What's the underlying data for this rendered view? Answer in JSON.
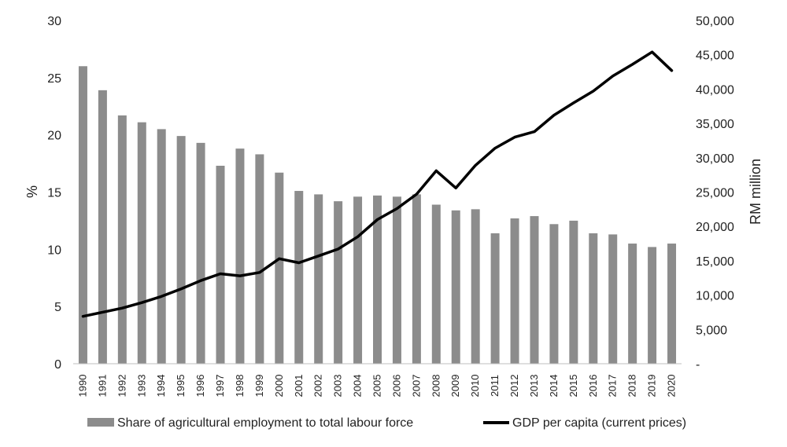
{
  "chart_data": {
    "type": "bar",
    "categories": [
      "1990",
      "1991",
      "1992",
      "1993",
      "1994",
      "1995",
      "1996",
      "1997",
      "1998",
      "1999",
      "2000",
      "2001",
      "2002",
      "2003",
      "2004",
      "2005",
      "2006",
      "2007",
      "2008",
      "2009",
      "2010",
      "2011",
      "2012",
      "2013",
      "2014",
      "2015",
      "2016",
      "2017",
      "2018",
      "2019",
      "2020"
    ],
    "series": [
      {
        "name": "Share of agricultural employment to total labour force",
        "type": "bar",
        "axis": "left",
        "color": "#8c8c8c",
        "values": [
          26.0,
          23.9,
          21.7,
          21.1,
          20.5,
          19.9,
          19.3,
          17.3,
          18.8,
          18.3,
          16.7,
          15.1,
          14.8,
          14.2,
          14.6,
          14.7,
          14.6,
          14.8,
          13.9,
          13.4,
          13.5,
          11.4,
          12.7,
          12.9,
          12.2,
          12.5,
          11.4,
          11.3,
          10.5,
          10.2,
          10.5
        ]
      },
      {
        "name": "GDP per capita (current prices)",
        "type": "line",
        "axis": "right",
        "color": "#000000",
        "values": [
          6900,
          7500,
          8100,
          8900,
          9800,
          10900,
          12100,
          13100,
          12800,
          13300,
          15300,
          14700,
          15700,
          16700,
          18500,
          21000,
          22600,
          24700,
          28100,
          25600,
          28900,
          31400,
          33000,
          33800,
          36200,
          38000,
          39700,
          41900,
          43600,
          45400,
          42700
        ]
      }
    ],
    "yaxis_left": {
      "label": "%",
      "min": 0,
      "max": 30,
      "ticks": [
        "0",
        "5",
        "10",
        "15",
        "20",
        "25",
        "30"
      ]
    },
    "yaxis_right": {
      "label": "RM million",
      "min": 0,
      "max": 50000,
      "ticks": [
        "-",
        "5,000",
        "10,000",
        "15,000",
        "20,000",
        "25,000",
        "30,000",
        "35,000",
        "40,000",
        "45,000",
        "50,000"
      ]
    },
    "legend": {
      "position": "bottom",
      "items": [
        {
          "label": "Share of agricultural employment to total labour force",
          "swatch": "bar"
        },
        {
          "label": "GDP per capita (current prices)",
          "swatch": "line"
        }
      ]
    },
    "grid": false
  }
}
